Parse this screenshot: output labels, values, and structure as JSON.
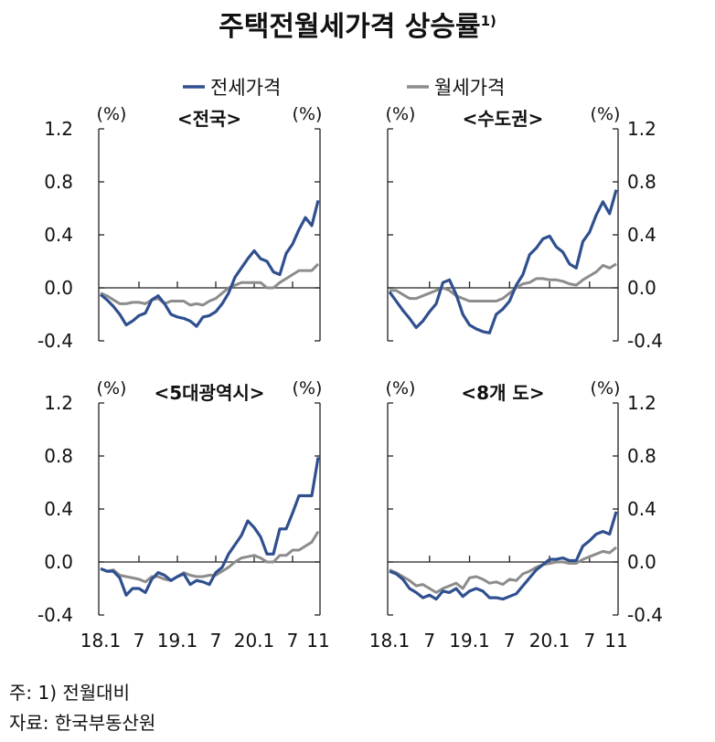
{
  "title": "주택전월세가격  상승률",
  "title_sup": "1)",
  "notes": [
    "주:  1) 전월대비",
    "자료:  한국부동산원"
  ],
  "colors": {
    "jeonse": "#2F4F8F",
    "wolse": "#8C8C8C"
  },
  "chart_data": {
    "type": "line",
    "legend": [
      "전세가격",
      "월세가격"
    ],
    "legend_position": "top",
    "unit_label": "(%)",
    "x_ticks": [
      "18.1",
      "7",
      "19.1",
      "7",
      "20.1",
      "7",
      "11"
    ],
    "x_tick_months": [
      0,
      6,
      12,
      18,
      24,
      30,
      34
    ],
    "x_range": "2018.1–2020.11 (monthly)",
    "ylim": [
      -0.4,
      1.2
    ],
    "y_ticks": [
      "1.2",
      "0.8",
      "0.4",
      "0.0",
      "-0.4"
    ],
    "panels": [
      {
        "title": "<전국>",
        "series": [
          {
            "name": "전세가격",
            "values": [
              -0.05,
              -0.09,
              -0.14,
              -0.2,
              -0.28,
              -0.25,
              -0.21,
              -0.19,
              -0.09,
              -0.06,
              -0.12,
              -0.2,
              -0.22,
              -0.23,
              -0.25,
              -0.29,
              -0.22,
              -0.21,
              -0.18,
              -0.12,
              -0.04,
              0.08,
              0.15,
              0.22,
              0.28,
              0.22,
              0.2,
              0.12,
              0.1,
              0.26,
              0.33,
              0.44,
              0.53,
              0.47,
              0.66
            ]
          },
          {
            "name": "월세가격",
            "values": [
              -0.04,
              -0.06,
              -0.09,
              -0.12,
              -0.12,
              -0.11,
              -0.11,
              -0.12,
              -0.09,
              -0.08,
              -0.12,
              -0.1,
              -0.1,
              -0.1,
              -0.13,
              -0.12,
              -0.13,
              -0.1,
              -0.08,
              -0.04,
              0.0,
              0.02,
              0.04,
              0.04,
              0.04,
              0.04,
              0.0,
              0.0,
              0.04,
              0.07,
              0.1,
              0.13,
              0.13,
              0.13,
              0.18
            ]
          }
        ]
      },
      {
        "title": "<수도권>",
        "series": [
          {
            "name": "전세가격",
            "values": [
              -0.03,
              -0.1,
              -0.17,
              -0.23,
              -0.3,
              -0.25,
              -0.18,
              -0.12,
              0.04,
              0.06,
              -0.05,
              -0.2,
              -0.28,
              -0.31,
              -0.33,
              -0.34,
              -0.2,
              -0.16,
              -0.1,
              0.02,
              0.1,
              0.25,
              0.3,
              0.37,
              0.39,
              0.31,
              0.27,
              0.18,
              0.15,
              0.35,
              0.42,
              0.55,
              0.65,
              0.56,
              0.74
            ]
          },
          {
            "name": "월세가격",
            "values": [
              -0.02,
              -0.02,
              -0.05,
              -0.08,
              -0.08,
              -0.06,
              -0.04,
              -0.02,
              0.0,
              -0.02,
              -0.06,
              -0.08,
              -0.1,
              -0.1,
              -0.1,
              -0.1,
              -0.1,
              -0.08,
              -0.04,
              0.0,
              0.03,
              0.04,
              0.07,
              0.07,
              0.06,
              0.06,
              0.05,
              0.03,
              0.02,
              0.06,
              0.09,
              0.12,
              0.17,
              0.15,
              0.18
            ]
          }
        ]
      },
      {
        "title": "<5대광역시>",
        "series": [
          {
            "name": "전세가격",
            "values": [
              -0.05,
              -0.07,
              -0.07,
              -0.12,
              -0.25,
              -0.2,
              -0.2,
              -0.23,
              -0.13,
              -0.08,
              -0.1,
              -0.14,
              -0.11,
              -0.09,
              -0.17,
              -0.14,
              -0.15,
              -0.17,
              -0.08,
              -0.04,
              0.06,
              0.13,
              0.2,
              0.31,
              0.26,
              0.19,
              0.06,
              0.06,
              0.25,
              0.25,
              0.37,
              0.5,
              0.5,
              0.5,
              0.79
            ]
          },
          {
            "name": "월세가격",
            "values": [
              -0.05,
              -0.07,
              -0.06,
              -0.1,
              -0.11,
              -0.12,
              -0.13,
              -0.15,
              -0.11,
              -0.11,
              -0.13,
              -0.14,
              -0.11,
              -0.08,
              -0.1,
              -0.11,
              -0.11,
              -0.1,
              -0.1,
              -0.07,
              -0.04,
              0.0,
              0.03,
              0.04,
              0.05,
              0.03,
              0.0,
              0.0,
              0.05,
              0.05,
              0.09,
              0.09,
              0.12,
              0.15,
              0.23
            ]
          }
        ]
      },
      {
        "title": "<8개 도>",
        "series": [
          {
            "name": "전세가격",
            "values": [
              -0.07,
              -0.09,
              -0.13,
              -0.2,
              -0.23,
              -0.27,
              -0.25,
              -0.28,
              -0.22,
              -0.23,
              -0.2,
              -0.26,
              -0.22,
              -0.2,
              -0.22,
              -0.27,
              -0.27,
              -0.28,
              -0.26,
              -0.24,
              -0.18,
              -0.12,
              -0.06,
              -0.02,
              0.02,
              0.02,
              0.03,
              0.01,
              0.01,
              0.12,
              0.16,
              0.21,
              0.23,
              0.21,
              0.38
            ]
          },
          {
            "name": "월세가격",
            "values": [
              -0.06,
              -0.08,
              -0.11,
              -0.14,
              -0.18,
              -0.17,
              -0.2,
              -0.23,
              -0.2,
              -0.18,
              -0.16,
              -0.2,
              -0.12,
              -0.11,
              -0.13,
              -0.16,
              -0.15,
              -0.17,
              -0.13,
              -0.14,
              -0.09,
              -0.07,
              -0.04,
              -0.02,
              -0.01,
              0.0,
              0.0,
              -0.01,
              -0.01,
              0.02,
              0.04,
              0.06,
              0.08,
              0.07,
              0.11
            ]
          }
        ]
      }
    ]
  }
}
